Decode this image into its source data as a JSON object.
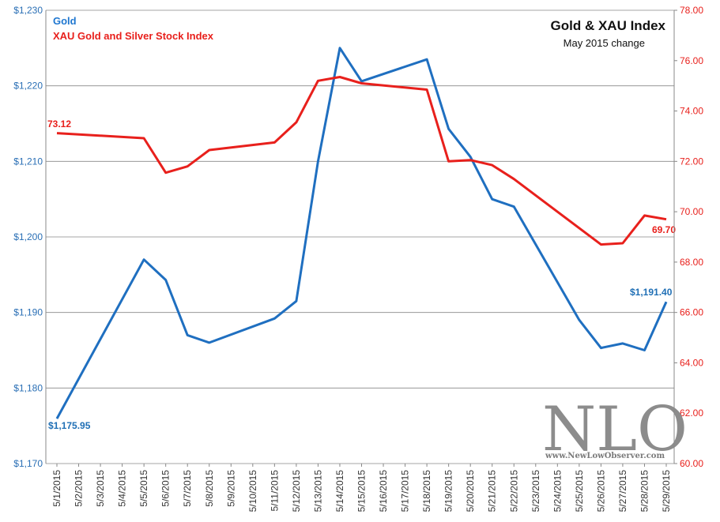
{
  "chart_data": {
    "type": "line",
    "title": "Gold & XAU Index",
    "subtitle": "May 2015 change",
    "categories": [
      "5/1/2015",
      "5/2/2015",
      "5/3/2015",
      "5/4/2015",
      "5/5/2015",
      "5/6/2015",
      "5/7/2015",
      "5/8/2015",
      "5/9/2015",
      "5/10/2015",
      "5/11/2015",
      "5/12/2015",
      "5/13/2015",
      "5/14/2015",
      "5/15/2015",
      "5/16/2015",
      "5/17/2015",
      "5/18/2015",
      "5/19/2015",
      "5/20/2015",
      "5/21/2015",
      "5/22/2015",
      "5/23/2015",
      "5/24/2015",
      "5/25/2015",
      "5/26/2015",
      "5/27/2015",
      "5/28/2015",
      "5/29/2015"
    ],
    "left_axis": {
      "min": 1170,
      "max": 1230,
      "step": 10,
      "tick_labels": [
        "$1,170",
        "$1,180",
        "$1,190",
        "$1,200",
        "$1,210",
        "$1,220",
        "$1,230"
      ]
    },
    "right_axis": {
      "min": 60,
      "max": 78,
      "step": 2,
      "tick_labels": [
        "60.00",
        "62.00",
        "64.00",
        "66.00",
        "68.00",
        "70.00",
        "72.00",
        "74.00",
        "76.00",
        "78.00"
      ]
    },
    "series": [
      {
        "name": "Gold",
        "axis": "left",
        "color": "#1f6fc0",
        "points": [
          [
            0,
            1175.95
          ],
          [
            4,
            1197
          ],
          [
            5,
            1194.3
          ],
          [
            6,
            1187
          ],
          [
            7,
            1186
          ],
          [
            10,
            1189.2
          ],
          [
            11,
            1191.5
          ],
          [
            12,
            1210
          ],
          [
            13,
            1225
          ],
          [
            14,
            1220.6
          ],
          [
            17,
            1223.5
          ],
          [
            18,
            1214.3
          ],
          [
            19,
            1210.6
          ],
          [
            20,
            1205
          ],
          [
            21,
            1204
          ],
          [
            24,
            1189
          ],
          [
            25,
            1185.3
          ],
          [
            26,
            1185.9
          ],
          [
            27,
            1185
          ],
          [
            28,
            1191.4
          ]
        ]
      },
      {
        "name": "XAU Gold and Silver Stock Index",
        "axis": "right",
        "color": "#e8201c",
        "points": [
          [
            0,
            73.12
          ],
          [
            4,
            72.92
          ],
          [
            5,
            71.55
          ],
          [
            6,
            71.8
          ],
          [
            7,
            72.45
          ],
          [
            10,
            72.75
          ],
          [
            11,
            73.55
          ],
          [
            12,
            75.2
          ],
          [
            13,
            75.35
          ],
          [
            14,
            75.1
          ],
          [
            17,
            74.85
          ],
          [
            18,
            72.0
          ],
          [
            19,
            72.05
          ],
          [
            20,
            71.85
          ],
          [
            21,
            71.3
          ],
          [
            25,
            68.7
          ],
          [
            26,
            68.75
          ],
          [
            27,
            69.85
          ],
          [
            28,
            69.7
          ]
        ]
      }
    ],
    "annotations": {
      "gold_start": "$1,175.95",
      "gold_end": "$1,191.40",
      "xau_start": "73.12",
      "xau_end": "69.70"
    },
    "legend": [
      "Gold",
      "XAU Gold and Silver Stock Index"
    ],
    "legend_position": "top-left",
    "grid": true
  },
  "watermark": {
    "text": "NLO",
    "url": "www.NewLowObserver.com"
  }
}
